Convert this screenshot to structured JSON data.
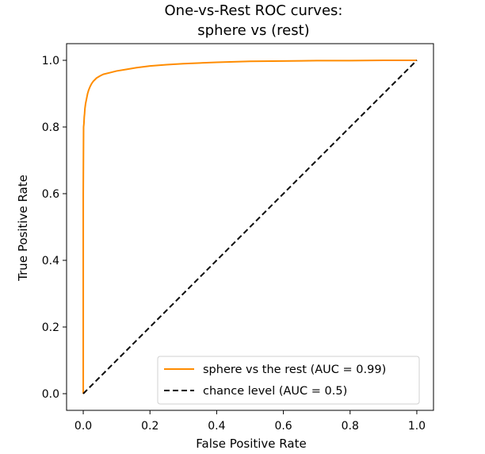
{
  "chart_data": {
    "type": "line",
    "title_lines": [
      "One-vs-Rest ROC curves:",
      "sphere vs (rest)"
    ],
    "xlabel": "False Positive Rate",
    "ylabel": "True Positive Rate",
    "xlim": [
      -0.05,
      1.05
    ],
    "ylim": [
      -0.05,
      1.05
    ],
    "xticks": [
      0.0,
      0.2,
      0.4,
      0.6,
      0.8,
      1.0
    ],
    "yticks": [
      0.0,
      0.2,
      0.4,
      0.6,
      0.8,
      1.0
    ],
    "xtick_labels": [
      "0.0",
      "0.2",
      "0.4",
      "0.6",
      "0.8",
      "1.0"
    ],
    "ytick_labels": [
      "0.0",
      "0.2",
      "0.4",
      "0.6",
      "0.8",
      "1.0"
    ],
    "grid": false,
    "legend_position": "lower-right",
    "series": [
      {
        "name": "sphere vs the rest (AUC = 0.99)",
        "color": "#ff8c00",
        "style": "solid",
        "x": [
          0.0,
          0.0,
          0.001,
          0.002,
          0.003,
          0.004,
          0.005,
          0.007,
          0.01,
          0.013,
          0.016,
          0.02,
          0.025,
          0.03,
          0.035,
          0.04,
          0.05,
          0.06,
          0.08,
          0.1,
          0.13,
          0.16,
          0.2,
          0.25,
          0.3,
          0.35,
          0.4,
          0.5,
          0.6,
          0.7,
          0.8,
          0.9,
          1.0
        ],
        "y": [
          0.0,
          0.6,
          0.8,
          0.81,
          0.83,
          0.84,
          0.855,
          0.87,
          0.885,
          0.9,
          0.91,
          0.92,
          0.93,
          0.937,
          0.942,
          0.947,
          0.953,
          0.958,
          0.963,
          0.968,
          0.973,
          0.978,
          0.983,
          0.987,
          0.99,
          0.992,
          0.994,
          0.997,
          0.998,
          0.999,
          0.999,
          1.0,
          1.0
        ]
      },
      {
        "name": "chance level (AUC = 0.5)",
        "color": "#000000",
        "style": "dashed",
        "x": [
          0.0,
          1.0
        ],
        "y": [
          0.0,
          1.0
        ]
      }
    ]
  }
}
